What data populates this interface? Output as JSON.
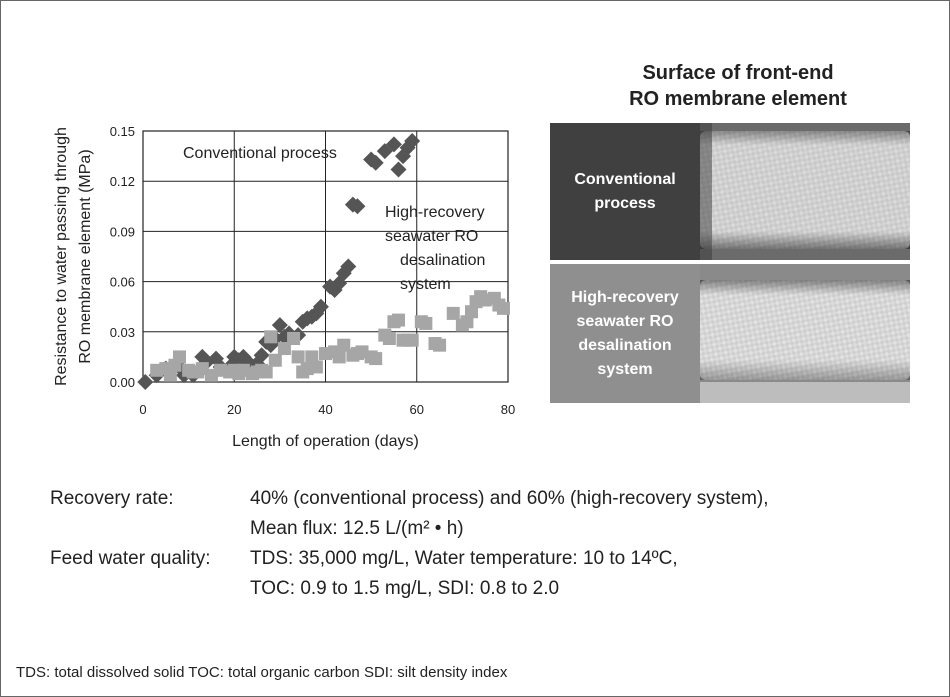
{
  "chart_data": {
    "type": "scatter",
    "ylabel_lines": [
      "Resistance to water passing through",
      "RO membrane element (MPa)"
    ],
    "xlabel": "Length of operation (days)",
    "xlim": [
      0,
      80
    ],
    "ylim": [
      0,
      0.15
    ],
    "xticks": [
      "0",
      "20",
      "40",
      "60",
      "80"
    ],
    "yticks": [
      "0.00",
      "0.03",
      "0.06",
      "0.09",
      "0.12",
      "0.15"
    ],
    "grid": true,
    "series": [
      {
        "name": "Conventional process",
        "marker": "diamond",
        "color": "#555555",
        "points": [
          [
            0.5,
            0.0
          ],
          [
            3,
            0.004
          ],
          [
            5,
            0.008
          ],
          [
            8,
            0.009
          ],
          [
            9,
            0.004
          ],
          [
            11,
            0.004
          ],
          [
            13,
            0.015
          ],
          [
            14,
            0.012
          ],
          [
            16,
            0.014
          ],
          [
            17,
            0.009
          ],
          [
            19,
            0.009
          ],
          [
            20,
            0.015
          ],
          [
            21,
            0.013
          ],
          [
            22,
            0.015
          ],
          [
            23,
            0.012
          ],
          [
            25,
            0.011
          ],
          [
            26,
            0.016
          ],
          [
            27,
            0.024
          ],
          [
            28,
            0.022
          ],
          [
            29,
            0.026
          ],
          [
            30,
            0.034
          ],
          [
            31,
            0.027
          ],
          [
            32,
            0.029
          ],
          [
            34,
            0.028
          ],
          [
            35,
            0.036
          ],
          [
            36,
            0.038
          ],
          [
            37,
            0.039
          ],
          [
            38,
            0.041
          ],
          [
            39,
            0.045
          ],
          [
            41,
            0.057
          ],
          [
            42,
            0.055
          ],
          [
            43,
            0.059
          ],
          [
            44,
            0.065
          ],
          [
            45,
            0.069
          ],
          [
            46,
            0.106
          ],
          [
            47,
            0.105
          ],
          [
            50,
            0.133
          ],
          [
            51,
            0.131
          ],
          [
            53,
            0.138
          ],
          [
            55,
            0.142
          ],
          [
            56,
            0.127
          ],
          [
            57,
            0.135
          ],
          [
            58,
            0.14
          ],
          [
            59,
            0.144
          ]
        ]
      },
      {
        "name": "High-recovery seawater RO desalination system",
        "marker": "square",
        "color": "#a6a6a6",
        "points": [
          [
            3,
            0.007
          ],
          [
            5,
            0.008
          ],
          [
            6,
            0.004
          ],
          [
            7,
            0.01
          ],
          [
            8,
            0.015
          ],
          [
            10,
            0.007
          ],
          [
            11,
            0.006
          ],
          [
            12,
            0.006
          ],
          [
            13,
            0.008
          ],
          [
            15,
            0.004
          ],
          [
            17,
            0.007
          ],
          [
            19,
            0.006
          ],
          [
            20,
            0.007
          ],
          [
            21,
            0.005
          ],
          [
            22,
            0.007
          ],
          [
            24,
            0.005
          ],
          [
            25,
            0.006
          ],
          [
            26,
            0.007
          ],
          [
            27,
            0.006
          ],
          [
            28,
            0.027
          ],
          [
            29,
            0.013
          ],
          [
            31,
            0.02
          ],
          [
            33,
            0.026
          ],
          [
            34,
            0.015
          ],
          [
            35,
            0.006
          ],
          [
            36,
            0.008
          ],
          [
            37,
            0.015
          ],
          [
            38,
            0.009
          ],
          [
            40,
            0.017
          ],
          [
            42,
            0.018
          ],
          [
            43,
            0.015
          ],
          [
            44,
            0.022
          ],
          [
            46,
            0.016
          ],
          [
            47,
            0.017
          ],
          [
            48,
            0.018
          ],
          [
            50,
            0.015
          ],
          [
            51,
            0.014
          ],
          [
            53,
            0.028
          ],
          [
            54,
            0.026
          ],
          [
            55,
            0.036
          ],
          [
            56,
            0.037
          ],
          [
            57,
            0.025
          ],
          [
            58,
            0.025
          ],
          [
            59,
            0.025
          ],
          [
            61,
            0.036
          ],
          [
            62,
            0.035
          ],
          [
            64,
            0.023
          ],
          [
            65,
            0.022
          ],
          [
            68,
            0.041
          ],
          [
            70,
            0.034
          ],
          [
            71,
            0.036
          ],
          [
            72,
            0.042
          ],
          [
            73,
            0.048
          ],
          [
            74,
            0.051
          ],
          [
            75,
            0.049
          ],
          [
            77,
            0.05
          ],
          [
            78,
            0.046
          ],
          [
            79,
            0.044
          ]
        ]
      }
    ],
    "annotations": {
      "conventional": "Conventional process",
      "high_recovery_lines": [
        "High-recovery",
        "seawater RO",
        "desalination",
        "system"
      ]
    }
  },
  "photo_panel": {
    "title_lines": [
      "Surface of front-end",
      "RO membrane element"
    ],
    "rows": [
      {
        "label_lines": [
          "Conventional",
          "process"
        ],
        "label_color": "#404040"
      },
      {
        "label_lines": [
          "High-recovery",
          "seawater RO",
          "desalination",
          "system"
        ],
        "label_color": "#8f8f8f"
      }
    ]
  },
  "conditions": {
    "recovery_label": "Recovery rate:",
    "recovery_values": [
      "40% (conventional process) and 60% (high-recovery system),",
      "Mean flux: 12.5 L/(m² • h)"
    ],
    "feed_label": "Feed water quality:",
    "feed_values": [
      "TDS: 35,000 mg/L, Water temperature: 10 to 14ºC,",
      "TOC: 0.9 to 1.5 mg/L, SDI: 0.8 to 2.0"
    ]
  },
  "footnote": "TDS: total dissolved solid   TOC: total organic carbon   SDI: silt density index"
}
